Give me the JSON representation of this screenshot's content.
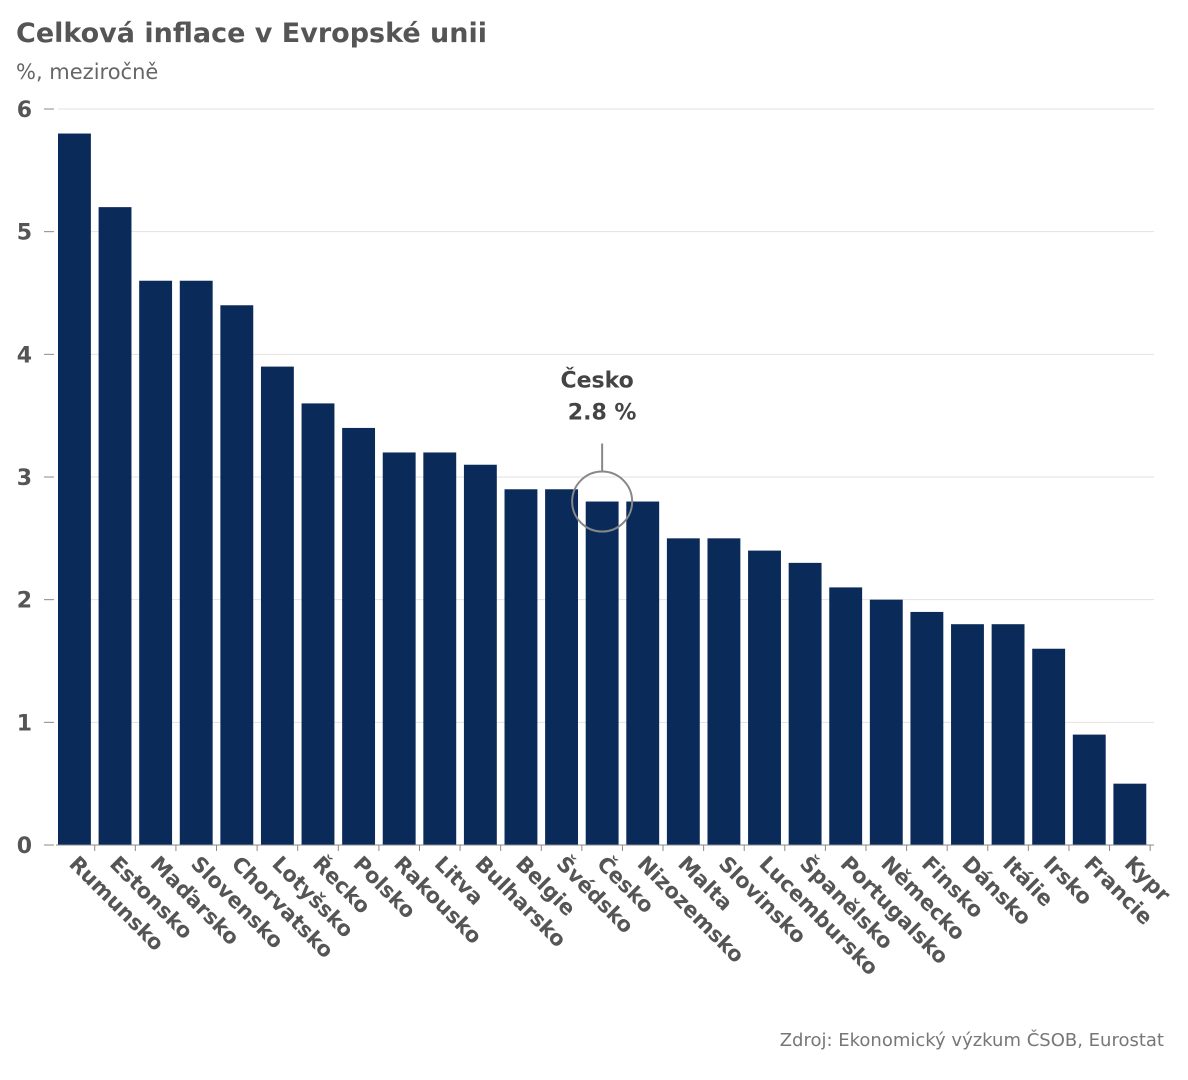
{
  "chart_data": {
    "type": "bar",
    "title": "Celková inflace v Evropské unii",
    "subtitle": "%, meziročně",
    "source": "Zdroj: Ekonomický výzkum ČSOB, Eurostat",
    "categories": [
      "Rumunsko",
      "Estonsko",
      "Maďarsko",
      "Slovensko",
      "Chorvatsko",
      "Lotyšsko",
      "Řecko",
      "Polsko",
      "Rakousko",
      "Litva",
      "Bulharsko",
      "Belgie",
      "Švédsko",
      "Česko",
      "Nizozemsko",
      "Malta",
      "Slovinsko",
      "Lucembursko",
      "Španělsko",
      "Portugalsko",
      "Německo",
      "Finsko",
      "Dánsko",
      "Itálie",
      "Irsko",
      "Francie",
      "Kypr"
    ],
    "values": [
      5.8,
      5.2,
      4.6,
      4.6,
      4.4,
      3.9,
      3.6,
      3.4,
      3.2,
      3.2,
      3.1,
      2.9,
      2.9,
      2.8,
      2.8,
      2.5,
      2.5,
      2.4,
      2.3,
      2.1,
      2.0,
      1.9,
      1.8,
      1.8,
      1.6,
      0.9,
      0.5
    ],
    "ylim": [
      0,
      6
    ],
    "yticks": [
      "0",
      "1",
      "2",
      "3",
      "4",
      "5",
      "6"
    ],
    "grid": true,
    "bar_color": "#0a2a5a",
    "annotation": {
      "category": "Česko",
      "line1": "Česko",
      "line2": "2.8 %"
    }
  }
}
